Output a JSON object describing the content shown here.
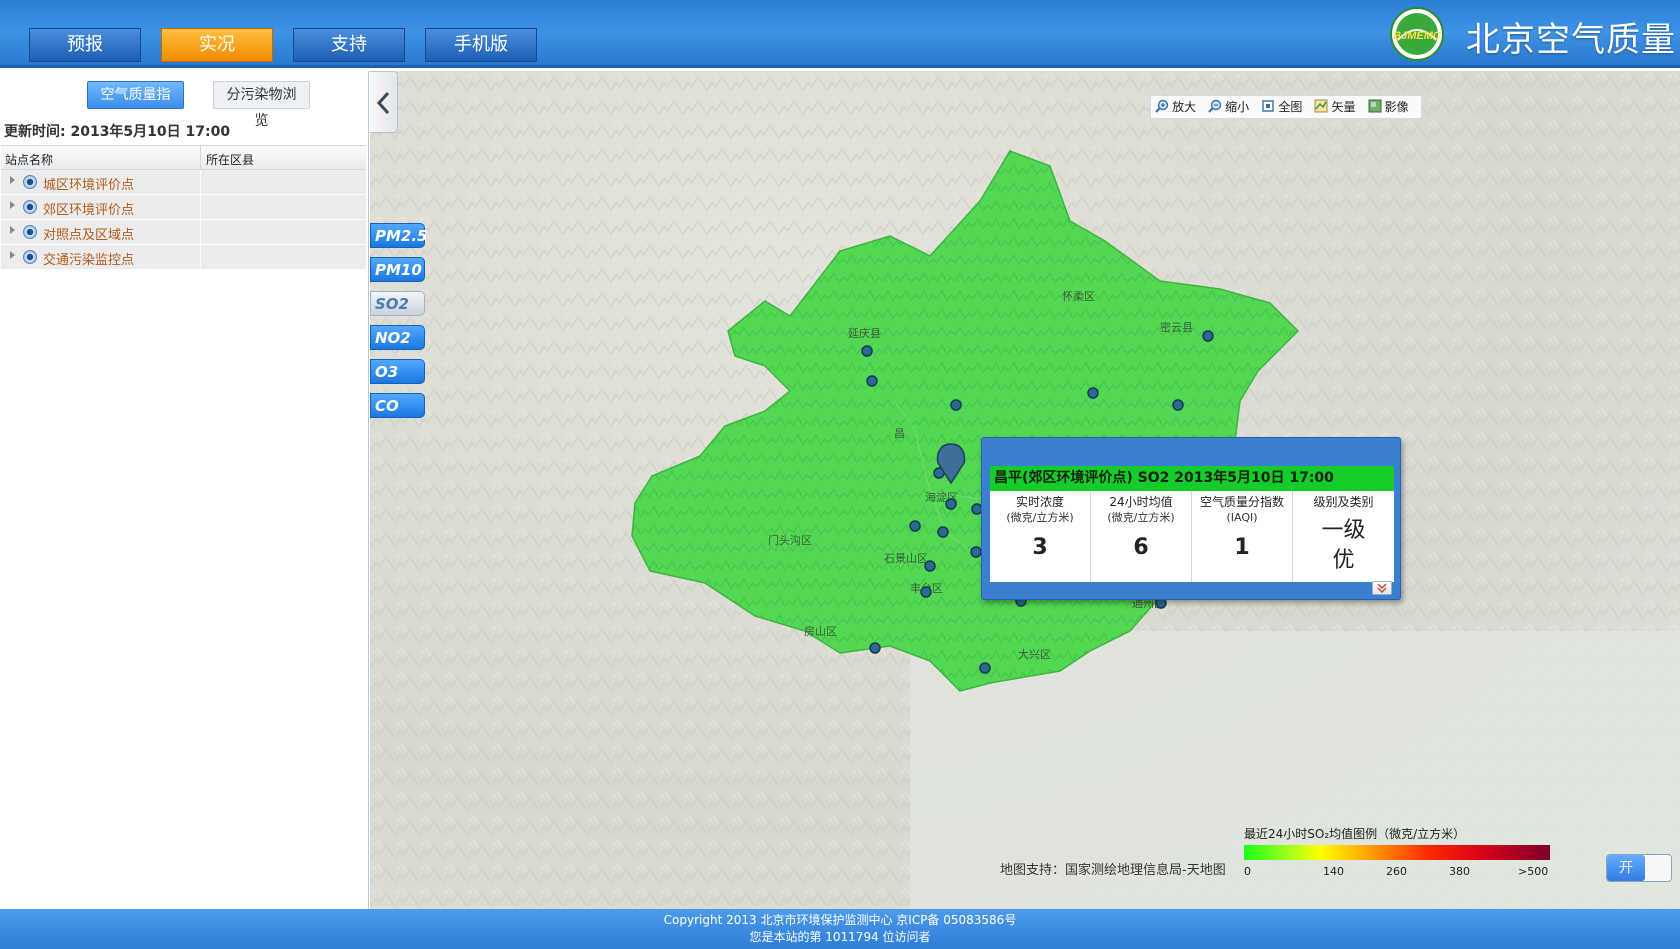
{
  "header": {
    "nav": [
      {
        "label": "预报",
        "active": false
      },
      {
        "label": "实况",
        "active": true
      },
      {
        "label": "支持",
        "active": false
      },
      {
        "label": "手机版",
        "active": false
      }
    ],
    "logo_text": "BJMEMC",
    "site_title": "北京空气质量"
  },
  "left_panel": {
    "tabs": {
      "aqi": "空气质量指数",
      "pollutant": "分污染物浏览"
    },
    "update_time": "更新时间: 2013年5月10日 17:00",
    "table": {
      "col_station": "站点名称",
      "col_district": "所在区县",
      "rows": [
        {
          "label": "城区环境评价点"
        },
        {
          "label": "郊区环境评价点"
        },
        {
          "label": "对照点及区域点"
        },
        {
          "label": "交通污染监控点"
        }
      ]
    }
  },
  "map": {
    "pollutants": [
      "PM2.5",
      "PM10",
      "SO2",
      "NO2",
      "O3",
      "CO"
    ],
    "active_pollutant": "SO2",
    "toolbar": {
      "zoom_in": "放大",
      "zoom_out": "缩小",
      "full": "全图",
      "vector": "矢量",
      "image": "影像"
    },
    "district_labels": {
      "yanqing": "延庆县",
      "huairou": "怀柔区",
      "miyun": "密云县",
      "changping": "昌",
      "haidian": "海淀区",
      "mentougou": "门头沟区",
      "shijingshan": "石景山区",
      "fengtai": "丰台区",
      "fangshan": "房山区",
      "daxing": "大兴区",
      "tongzhou": "通州区"
    },
    "popup": {
      "title": "昌平(郊区环境评价点)  SO2 2013年5月10日 17:00",
      "columns": [
        {
          "h1": "实时浓度",
          "h2": "(微克/立方米)",
          "value": "3"
        },
        {
          "h1": "24小时均值",
          "h2": "(微克/立方米)",
          "value": "6"
        },
        {
          "h1": "空气质量分指数",
          "h2": "(IAQI)",
          "value": "1"
        },
        {
          "h1": "级别及类别",
          "h2": "",
          "value": "一级",
          "value2": "优"
        }
      ]
    },
    "legend": {
      "title": "最近24小时SO₂均值图例（微克/立方米）",
      "ticks": [
        "0",
        "140",
        "260",
        "380",
        ">500"
      ],
      "colors": [
        "#1aff1a",
        "#ffff00",
        "#ff9a00",
        "#ff2a00",
        "#7e002a"
      ]
    },
    "credit": "地图支持：国家测绘地理信息局-天地图",
    "toggle_label": "开",
    "region_color": "#52d852"
  },
  "footer": {
    "line1": "Copyright 2013 北京市环境保护监测中心 京ICP备 05083586号",
    "line2": "您是本站的第 1011794 位访问者"
  }
}
